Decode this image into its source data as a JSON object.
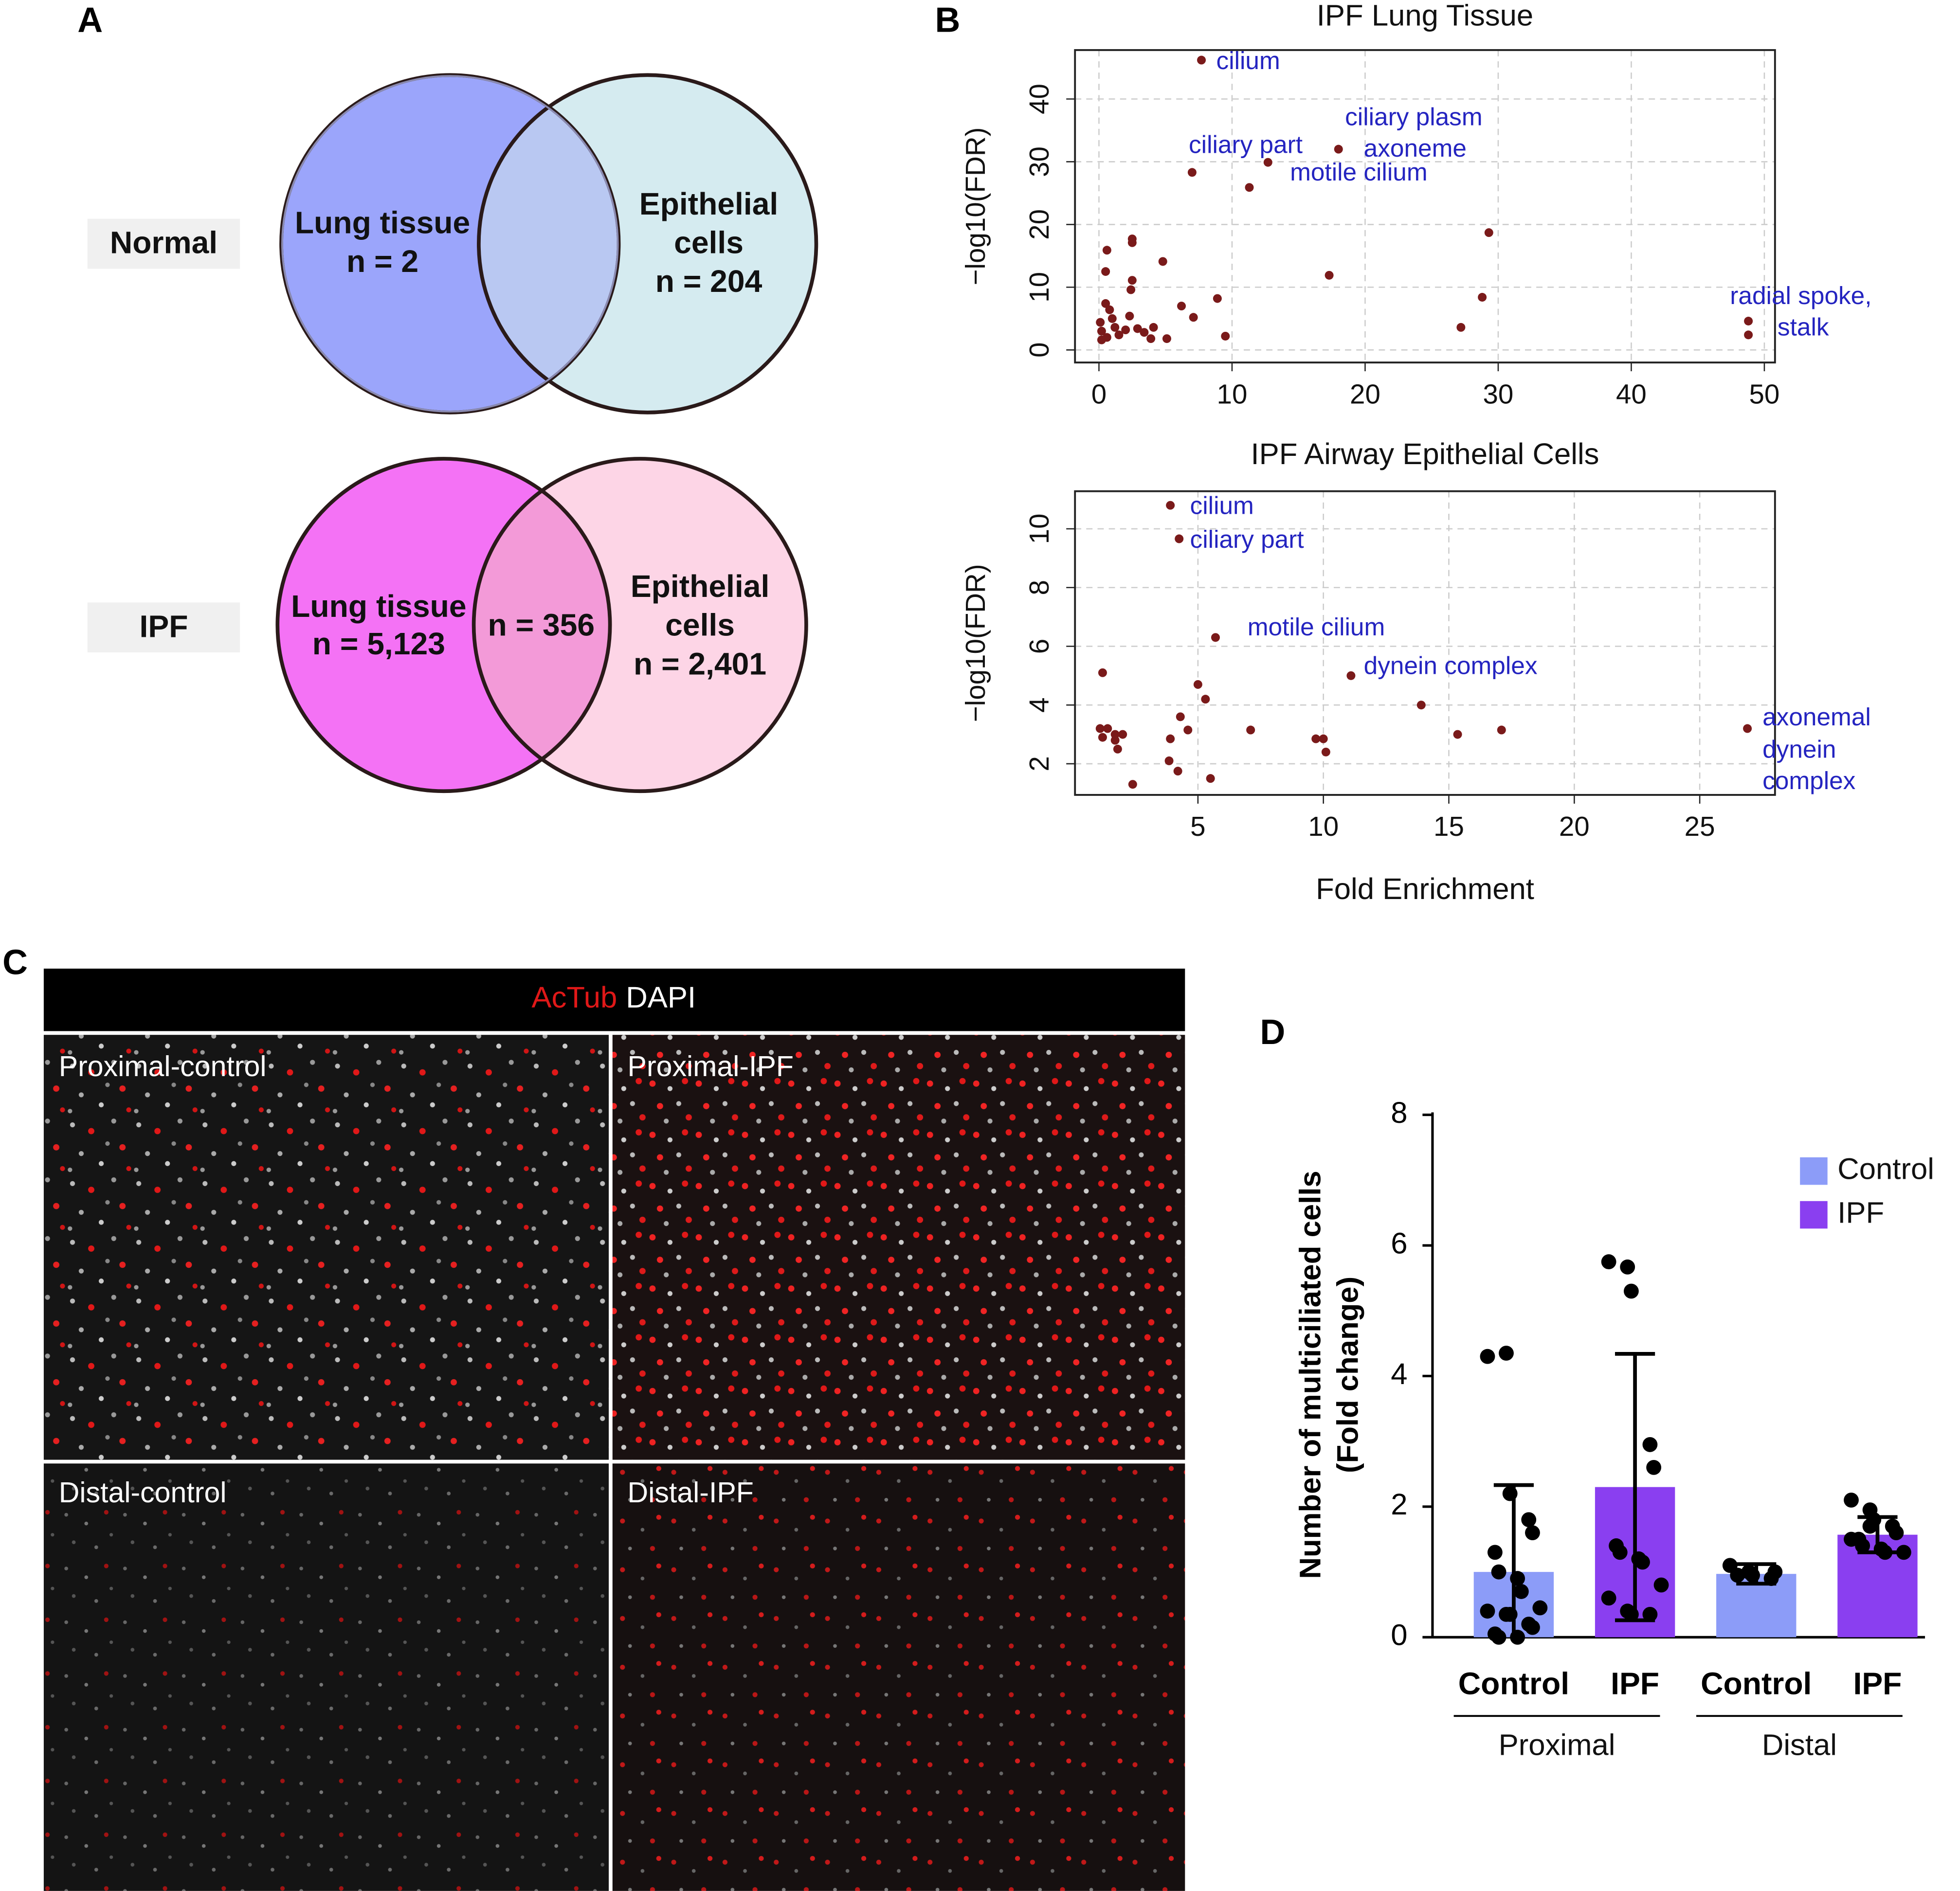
{
  "panel_labels": [
    "A",
    "B",
    "C",
    "D"
  ],
  "venn": [
    {
      "label": "Normal",
      "left": [
        "Lung tissue",
        "n = 2"
      ],
      "right": [
        "Epithelial",
        "cells",
        "n = 204"
      ]
    },
    {
      "label": "IPF",
      "left": [
        "Lung tissue",
        "n = 5,123"
      ],
      "overlap": [
        "n = 356"
      ],
      "right": [
        "Epithelial",
        "cells",
        "n = 2,401"
      ]
    }
  ],
  "images": {
    "header": [
      "AcTub",
      "DAPI"
    ],
    "panels": [
      "Proximal-control",
      "Proximal-IPF",
      "Distal-control",
      "Distal-IPF"
    ]
  },
  "chart_data": [
    {
      "type": "scatter",
      "title": "IPF Lung Tissue",
      "ylabel": "−log10(FDR)",
      "color": "#7a1a1a",
      "grid": true,
      "xlim": [
        -1.8,
        50.8
      ],
      "xticks": [
        0,
        10,
        20,
        30,
        40,
        50
      ],
      "ylim": [
        -2,
        47.8
      ],
      "yticks": [
        0,
        10,
        20,
        30,
        40
      ],
      "x": [
        7.7,
        7.0,
        12.7,
        11.3,
        18.0,
        48.8,
        48.8,
        29.3,
        17.3,
        28.8,
        27.2,
        0.6,
        0.5,
        2.5,
        2.5,
        4.8,
        2.5,
        2.4,
        6.2,
        8.9,
        7.1,
        2.3,
        0.1,
        0.5,
        0.8,
        0.2,
        0.6,
        1.5,
        2.0,
        2.9,
        3.4,
        3.9,
        5.1,
        4.1,
        0.2,
        1.0,
        9.5,
        1.2
      ],
      "values": [
        46.2,
        28.3,
        29.9,
        25.9,
        32.0,
        4.6,
        2.4,
        18.7,
        11.9,
        8.4,
        3.6,
        15.9,
        12.5,
        17.7,
        17.1,
        14.1,
        11.1,
        9.6,
        7.0,
        8.2,
        5.2,
        5.4,
        4.4,
        7.4,
        6.4,
        3.0,
        2.0,
        2.4,
        3.2,
        3.4,
        2.8,
        1.8,
        1.8,
        3.6,
        1.6,
        5.0,
        2.2,
        3.6
      ],
      "annotations": [
        "cilium",
        "ciliary part",
        "ciliary plasm",
        "axoneme",
        "motile cilium",
        "radial spoke,",
        "stalk"
      ]
    },
    {
      "type": "scatter",
      "title": "IPF Airway Epithelial Cells",
      "ylabel": "−log10(FDR)",
      "xlabel": "Fold Enrichment",
      "color": "#7a1a1a",
      "grid": true,
      "xlim": [
        0.1,
        28
      ],
      "xticks": [
        5,
        10,
        15,
        20,
        25
      ],
      "ylim": [
        0.94,
        11.28
      ],
      "yticks": [
        2,
        4,
        6,
        8,
        10
      ],
      "x": [
        3.9,
        4.25,
        5.7,
        11.1,
        13.9,
        26.9,
        17.1,
        15.35,
        5.0,
        5.3,
        1.2,
        4.3,
        4.6,
        7.1,
        9.7,
        10.0,
        10.1,
        3.9,
        3.85,
        4.2,
        5.5,
        2.4,
        1.1,
        1.4,
        1.2,
        1.7,
        2.0,
        1.7,
        1.8
      ],
      "values": [
        10.8,
        9.66,
        6.3,
        5.0,
        4.0,
        3.2,
        3.15,
        3.0,
        4.7,
        4.2,
        5.1,
        3.6,
        3.15,
        3.15,
        2.85,
        2.85,
        2.4,
        2.85,
        2.1,
        1.75,
        1.5,
        1.3,
        3.2,
        3.2,
        2.9,
        3.0,
        3.0,
        2.8,
        2.5
      ],
      "annotations": [
        "cilium",
        "ciliary part",
        "motile cilium",
        "dynein complex",
        "axonemal",
        "dynein",
        "complex"
      ]
    },
    {
      "type": "bar",
      "ylabel": [
        "Number of multiciliated cells",
        "(Fold change)"
      ],
      "categories": [
        "Control",
        "IPF",
        "Control",
        "IPF"
      ],
      "groups": [
        "Proximal",
        "Distal"
      ],
      "ylim": [
        0,
        8
      ],
      "yticks": [
        0,
        2,
        4,
        6,
        8
      ],
      "series": [
        {
          "name": "Control",
          "color": "#8c9cf8",
          "values": [
            1,
            null,
            0.97,
            null
          ],
          "errors": [
            1.33,
            null,
            0.15,
            null
          ]
        },
        {
          "name": "IPF",
          "color": "#8a3ff0",
          "values": [
            null,
            2.3,
            null,
            1.57
          ],
          "errors": [
            null,
            2.04,
            null,
            0.27
          ]
        }
      ],
      "points": [
        [
          4.3,
          4.35,
          2.2,
          1.8,
          1.6,
          1.3,
          1.0,
          0.9,
          0.7,
          0.45,
          0.4,
          0.35,
          0.35,
          0.2,
          0.15,
          0.05,
          0.0,
          0.0
        ],
        [
          5.75,
          5.67,
          5.3,
          2.95,
          2.6,
          1.4,
          1.3,
          1.2,
          1.15,
          0.8,
          0.6,
          0.4,
          0.35,
          0.35
        ],
        [
          1.1,
          1.0,
          0.95,
          0.9,
          1.0,
          0.95
        ],
        [
          2.1,
          1.95,
          1.8,
          1.7,
          1.6,
          1.5,
          1.4,
          1.35,
          1.3,
          1.3,
          1.5,
          1.7
        ]
      ]
    }
  ]
}
